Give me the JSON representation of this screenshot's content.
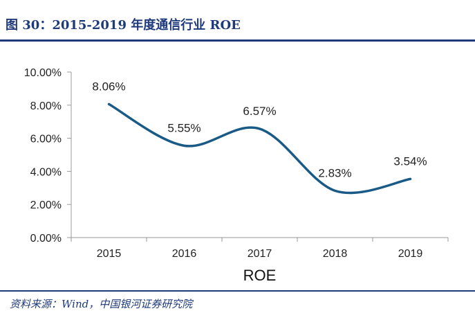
{
  "figure": {
    "title": "图 30：2015-2019 年度通信行业 ROE",
    "source": "资料来源：Wind，中国银河证券研究院"
  },
  "colors": {
    "line": "#1a5a86",
    "rule": "#1f3a7a",
    "axis": "#999999"
  },
  "chart_data": {
    "type": "line",
    "categories": [
      "2015",
      "2016",
      "2017",
      "2018",
      "2019"
    ],
    "series": [
      {
        "values": [
          8.06,
          5.55,
          6.57,
          2.83,
          3.54
        ]
      }
    ],
    "data_labels": [
      "8.06%",
      "5.55%",
      "6.57%",
      "2.83%",
      "3.54%"
    ],
    "y_ticks": [
      "0.00%",
      "2.00%",
      "4.00%",
      "6.00%",
      "8.00%",
      "10.00%"
    ],
    "ylim": [
      0,
      10
    ],
    "xlabel": "ROE",
    "ylabel": "",
    "grid": false,
    "smooth": true
  }
}
